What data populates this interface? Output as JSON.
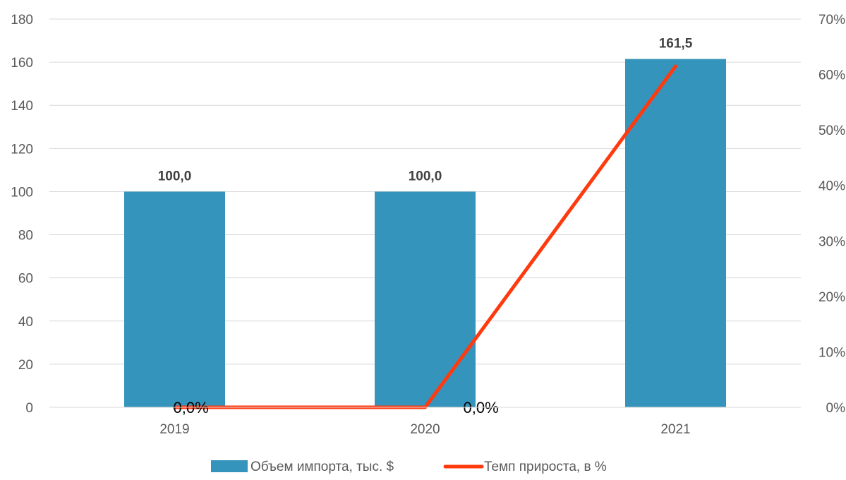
{
  "chart_data": {
    "type": "bar",
    "categories": [
      "2019",
      "2020",
      "2021"
    ],
    "series": [
      {
        "name": "Объем импорта, тыс. $",
        "type": "bar",
        "axis": "left",
        "values": [
          100.0,
          100.0,
          161.5
        ],
        "labels": [
          "100,0",
          "100,0",
          "161,5"
        ],
        "color": "#3594BB"
      },
      {
        "name": "Темп прироста, в %",
        "type": "line",
        "axis": "right",
        "values": [
          0.0,
          0.0,
          61.5
        ],
        "labels": [
          "0,0%",
          "0,0%",
          ""
        ],
        "color": "#FF3A0F"
      }
    ],
    "y_left": {
      "min": 0,
      "max": 180,
      "ticks": [
        "0",
        "20",
        "40",
        "60",
        "80",
        "100",
        "120",
        "140",
        "160",
        "180"
      ]
    },
    "y_right": {
      "min": 0,
      "max": 70,
      "ticks": [
        "0%",
        "10%",
        "20%",
        "30%",
        "40%",
        "50%",
        "60%",
        "70%"
      ]
    },
    "grid": true,
    "legend": "bottom",
    "title": "",
    "xlabel": "",
    "ylabel": ""
  }
}
